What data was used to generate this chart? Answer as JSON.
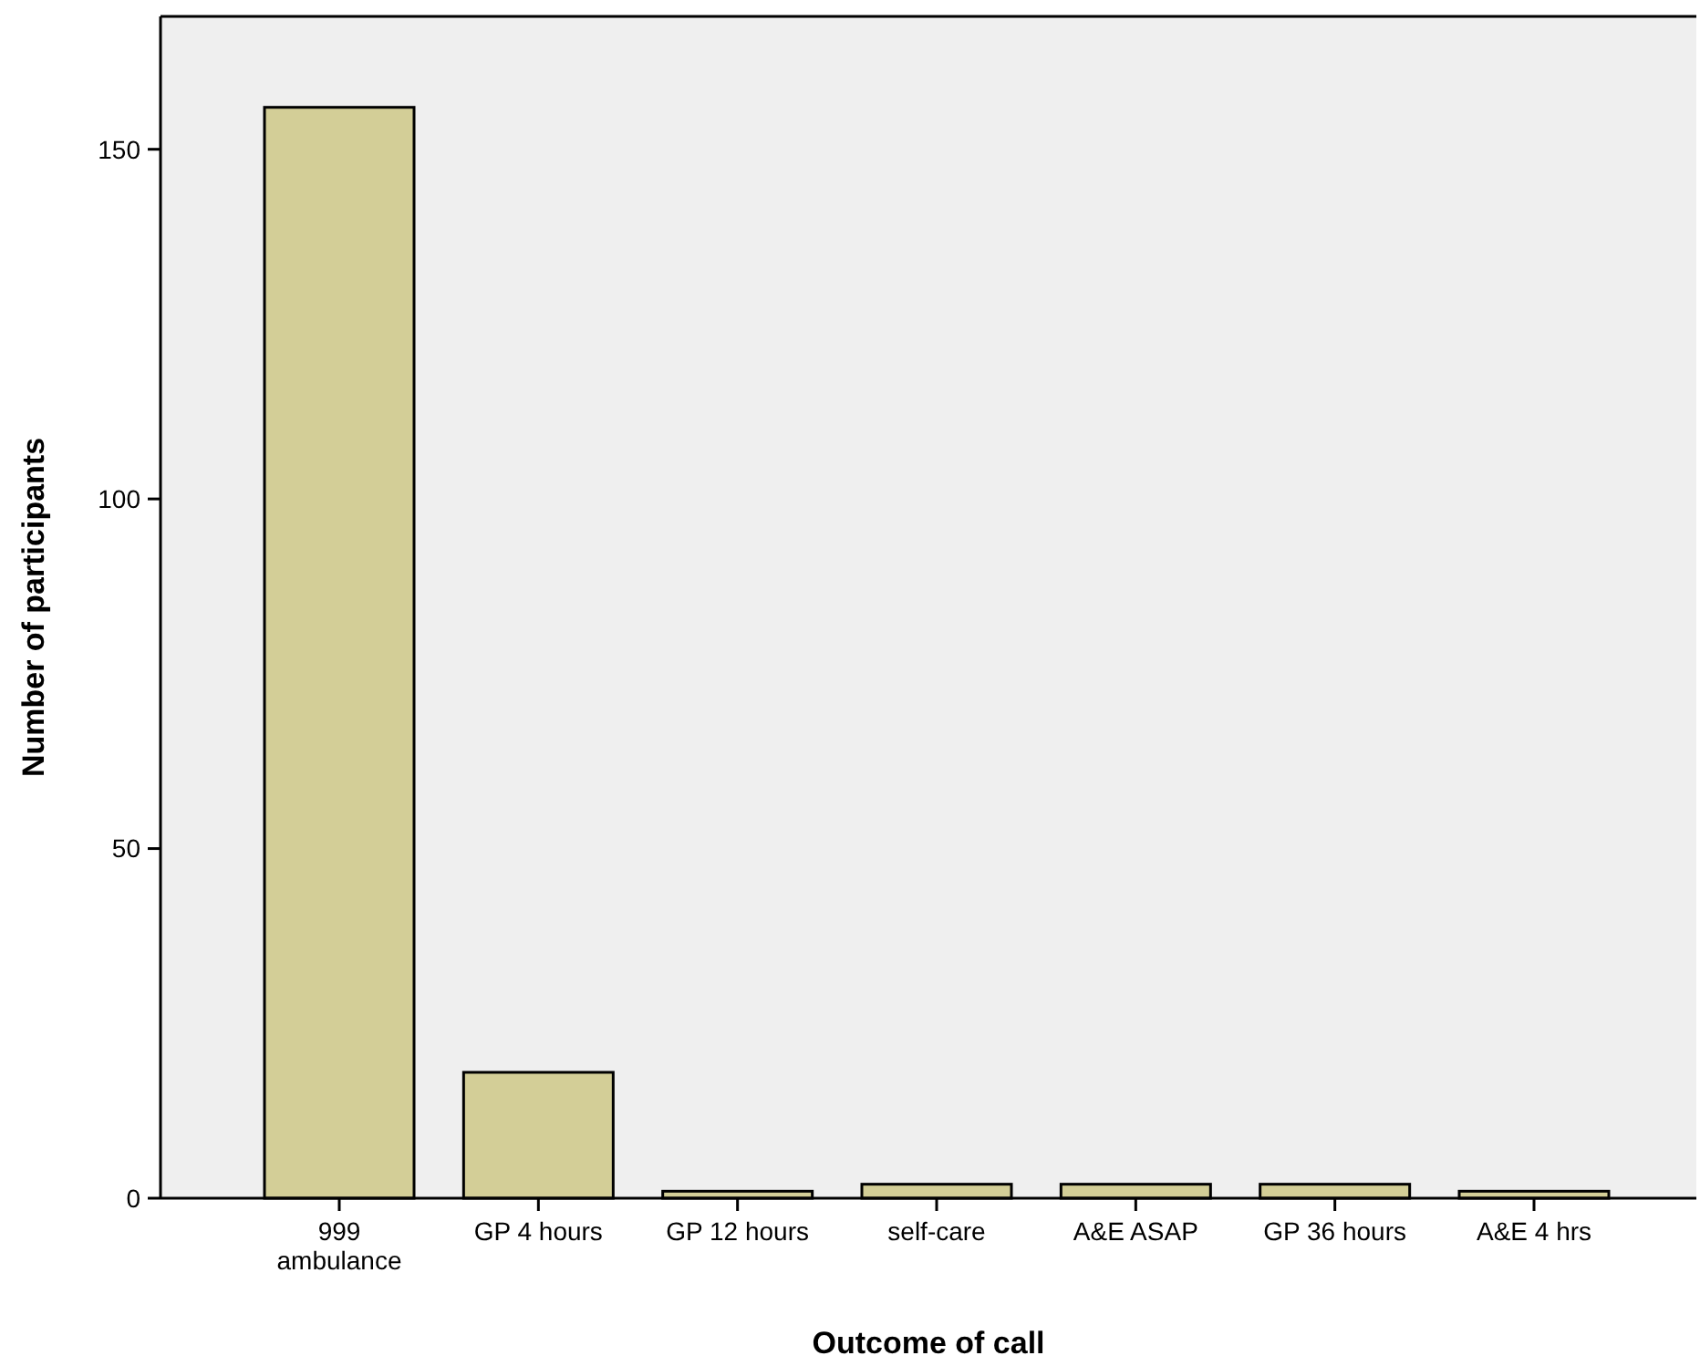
{
  "chart_data": {
    "type": "bar",
    "xlabel": "Outcome of call",
    "ylabel": "Number of participants",
    "categories": [
      "999\nambulance",
      "GP 4 hours",
      "GP 12 hours",
      "self-care",
      "A&E ASAP",
      "GP 36 hours",
      "A&E 4 hrs"
    ],
    "values": [
      156,
      18,
      1,
      2,
      2,
      2,
      1
    ],
    "color": "#d3ce97",
    "ylim": [
      0,
      169
    ],
    "yticks": [
      0,
      50,
      100,
      150
    ],
    "grid": false
  }
}
